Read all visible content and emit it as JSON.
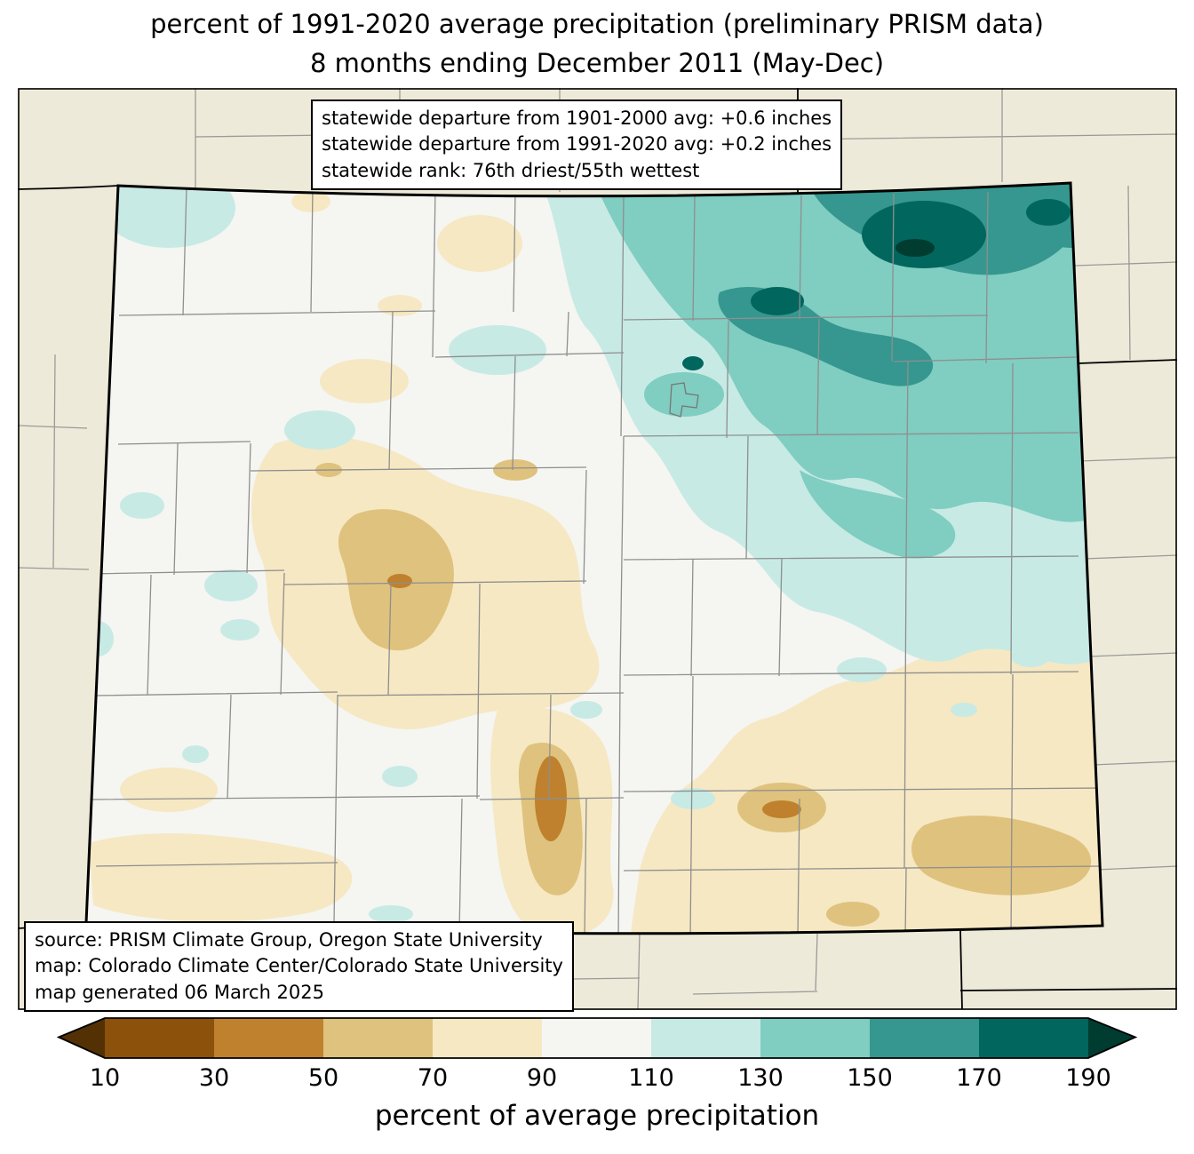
{
  "title": {
    "line1": "percent of 1991-2020 average precipitation (preliminary PRISM data)",
    "line2": "8 months ending December 2011 (May-Dec)"
  },
  "stats_box": {
    "lines": [
      "statewide departure from 1901-2000 avg: +0.6 inches",
      "statewide departure from 1991-2020 avg: +0.2 inches",
      "statewide rank: 76th driest/55th wettest"
    ]
  },
  "source_box": {
    "lines": [
      "source: PRISM Climate Group, Oregon State University",
      "map: Colorado Climate Center/Colorado State University",
      "map generated 06 March 2025"
    ]
  },
  "palette": {
    "below_10": "#543005",
    "p10_30": "#8c510a",
    "p30_50": "#bf812d",
    "p50_70": "#dfc27d",
    "p70_90": "#f6e8c3",
    "p90_110": "#f5f5f2",
    "p110_130": "#c7eae5",
    "p130_150": "#80cdc1",
    "p150_170": "#35978f",
    "p170_190": "#01665e",
    "above_190": "#003c30",
    "outside_state": "#eeead9",
    "county_line": "#8f8f8f",
    "state_line": "#000000"
  },
  "colorbar": {
    "label": "percent of average precipitation",
    "ticks": [
      "10",
      "30",
      "50",
      "70",
      "90",
      "110",
      "130",
      "150",
      "170",
      "190"
    ],
    "segment_keys": [
      "p10_30",
      "p30_50",
      "p50_70",
      "p70_90",
      "p90_110",
      "p110_130",
      "p130_150",
      "p150_170",
      "p170_190"
    ],
    "left_arrow_key": "below_10",
    "right_arrow_key": "above_190"
  },
  "map": {
    "region": "Colorado",
    "legend_bins": [
      {
        "range": "<10",
        "palette": "below_10"
      },
      {
        "range": "10-30",
        "palette": "p10_30"
      },
      {
        "range": "30-50",
        "palette": "p30_50"
      },
      {
        "range": "50-70",
        "palette": "p50_70"
      },
      {
        "range": "70-90",
        "palette": "p70_90"
      },
      {
        "range": "90-110",
        "palette": "p90_110"
      },
      {
        "range": "110-130",
        "palette": "p110_130"
      },
      {
        "range": "130-150",
        "palette": "p130_150"
      },
      {
        "range": "150-170",
        "palette": "p150_170"
      },
      {
        "range": "170-190",
        "palette": "p170_190"
      },
      {
        "range": ">190",
        "palette": "above_190"
      }
    ]
  }
}
